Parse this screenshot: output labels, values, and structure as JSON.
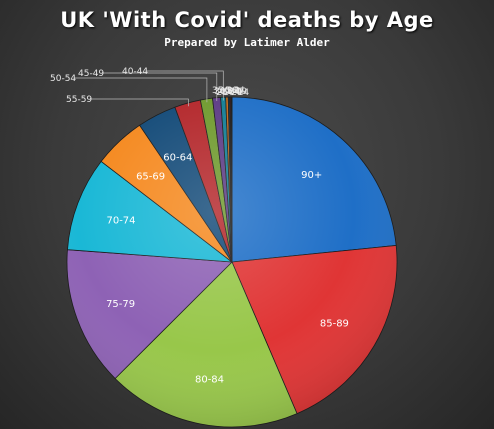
{
  "chart_data": {
    "type": "pie",
    "title": "UK 'With Covid' deaths by Age",
    "subtitle": "Prepared  by Latimer  Alder",
    "categories": [
      "90+",
      "85-89",
      "80-84",
      "75-79",
      "70-74",
      "65-69",
      "60-64",
      "55-59",
      "50-54",
      "45-49",
      "40-44",
      "35-39",
      "30-34",
      "25-29",
      "20-24",
      "15-19",
      "10-14",
      "5-9",
      "0-4"
    ],
    "values": [
      23.8,
      20.5,
      19.3,
      13.9,
      9.4,
      5.2,
      3.9,
      2.6,
      1.2,
      0.8,
      0.5,
      0.25,
      0.15,
      0.1,
      0.05,
      0.03,
      0.02,
      0.01,
      0.01
    ],
    "colors": [
      "#1f6fc7",
      "#e03535",
      "#98c74a",
      "#8e62b5",
      "#1ab8d6",
      "#f5891f",
      "#134a78",
      "#b3262a",
      "#6f9a2e",
      "#5c3b85",
      "#127f96",
      "#c66a18",
      "#0e3a5e",
      "#8a1e22",
      "#56772a",
      "#462f66",
      "#0e6476",
      "#9c5514",
      "#0a2c48"
    ],
    "legend": "none"
  }
}
